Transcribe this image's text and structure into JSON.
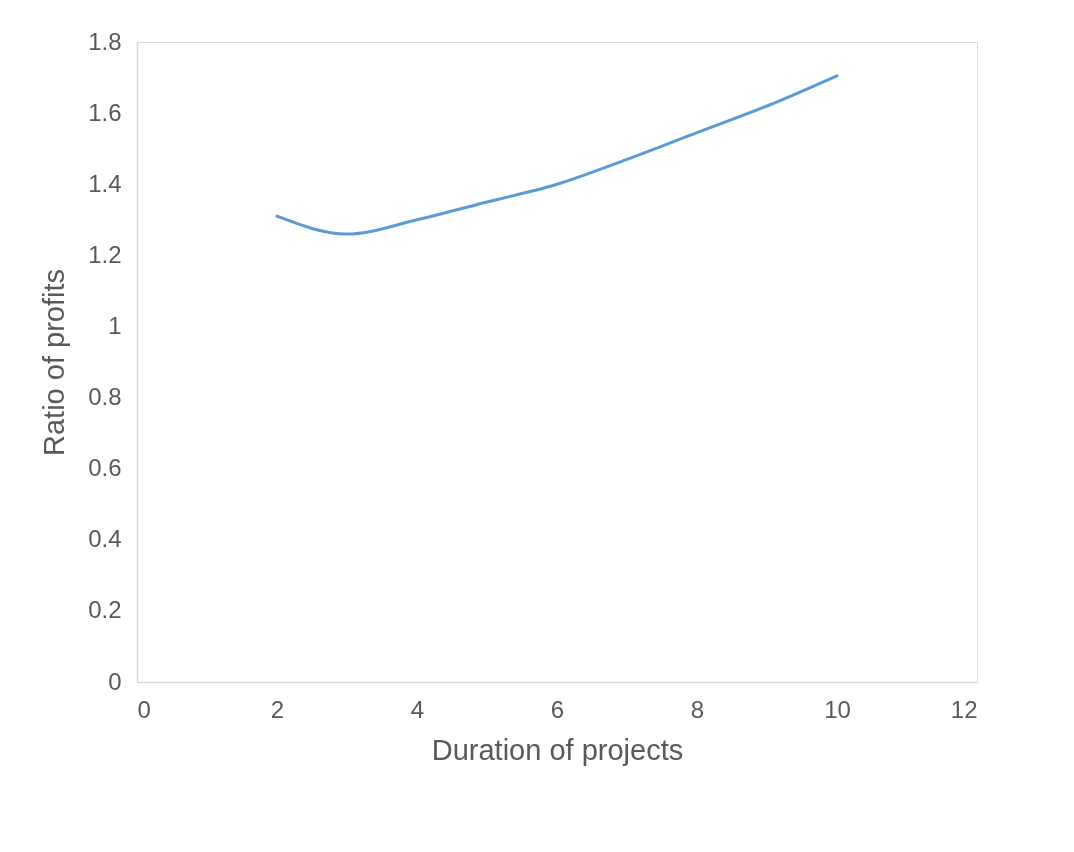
{
  "chart_data": {
    "type": "line",
    "xlabel": "Duration of projects",
    "ylabel": "Ratio of profits",
    "x": [
      2,
      3,
      4,
      5,
      6,
      7,
      8,
      9,
      10
    ],
    "series": [
      {
        "color": "#5b9bd5",
        "values": [
          1.31,
          1.26,
          1.3,
          1.35,
          1.4,
          1.47,
          1.545,
          1.62,
          1.705
        ]
      }
    ],
    "xlim": [
      0,
      12
    ],
    "xticks": [
      0,
      2,
      4,
      6,
      8,
      10,
      12
    ],
    "ylim": [
      0,
      1.8
    ],
    "yticks": [
      0,
      0.2,
      0.4,
      0.6,
      0.8,
      1,
      1.2,
      1.4,
      1.6,
      1.8
    ],
    "grid": false,
    "legend": false,
    "marker": "none",
    "line_style": "solid"
  }
}
